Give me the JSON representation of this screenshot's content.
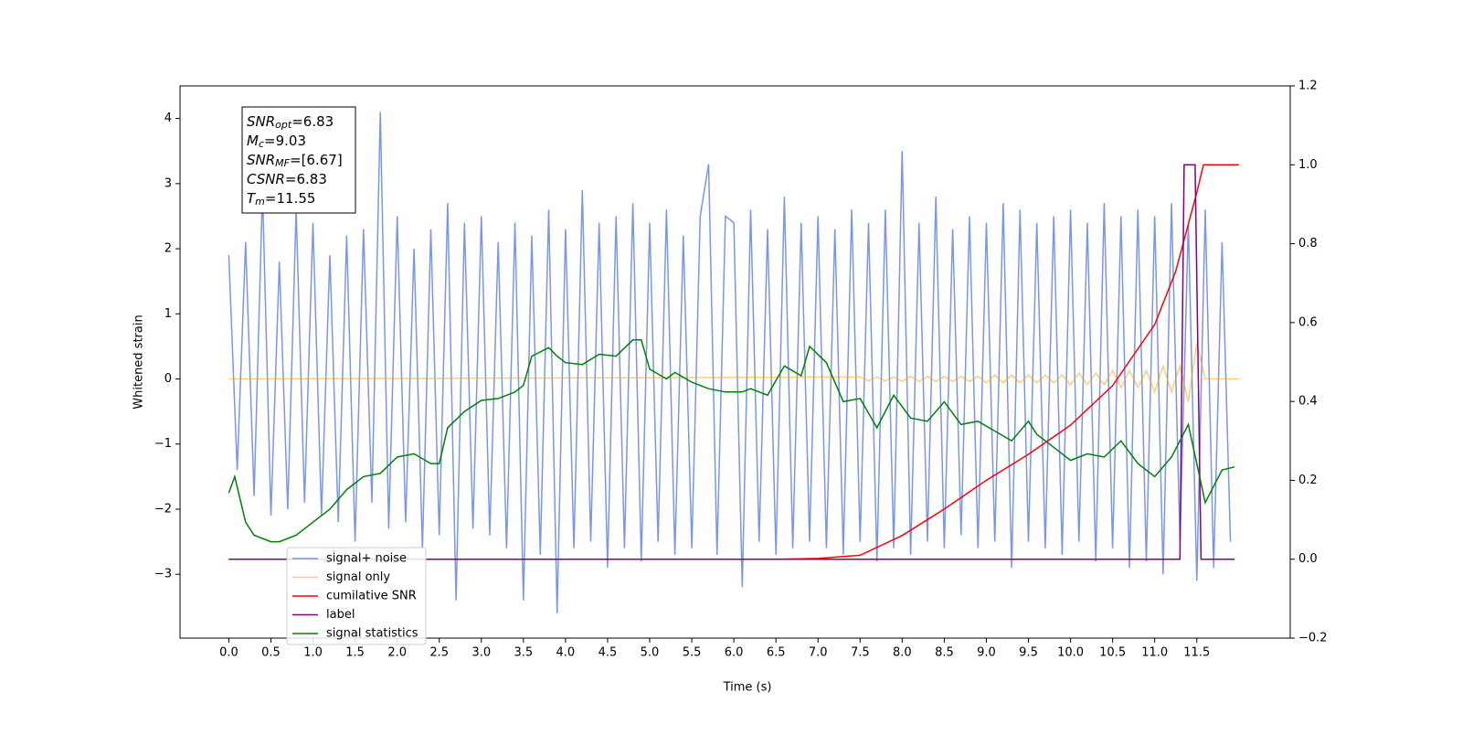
{
  "chart_data": {
    "type": "line",
    "xlabel": "Time (s)",
    "ylabel": "Whitened strain",
    "xlim": [
      -0.58,
      12.61
    ],
    "ylim": [
      -3.98,
      4.5
    ],
    "y2lim": [
      -0.2,
      1.2
    ],
    "xticks": [
      {
        "value": 0,
        "label": "0.0"
      },
      0.5,
      {
        "value": 1,
        "label": "1.0"
      },
      1.5,
      {
        "value": 2,
        "label": "2.0"
      },
      2.5,
      {
        "value": 3,
        "label": "3.0"
      },
      3.5,
      {
        "value": 4,
        "label": "4.0"
      },
      4.5,
      {
        "value": 5,
        "label": "5.0"
      },
      5.5,
      {
        "value": 6,
        "label": "6.0"
      },
      6.5,
      {
        "value": 7,
        "label": "7.0"
      },
      7.5,
      {
        "value": 8,
        "label": "8.0"
      },
      8.5,
      {
        "value": 9,
        "label": "9.0"
      },
      9.5,
      {
        "value": 10,
        "label": "10.0"
      },
      10.5,
      {
        "value": 11,
        "label": "11.0"
      },
      11.5
    ],
    "yticks": [
      {
        "value": -3,
        "label": "−3"
      },
      {
        "value": -2,
        "label": "−2"
      },
      {
        "value": -1,
        "label": "−1"
      },
      0,
      1,
      2,
      3,
      4
    ],
    "y2ticks": [
      {
        "value": -0.2,
        "label": "−0.2"
      },
      {
        "value": 0,
        "label": "0.0"
      },
      0.2,
      0.4,
      0.6,
      0.8,
      {
        "value": 1,
        "label": "1.0"
      },
      1.2
    ],
    "annotation": [
      {
        "name": "SNR",
        "sub": "opt",
        "text": "=6.83"
      },
      {
        "name": "M",
        "sub": "c",
        "text": "=9.03"
      },
      {
        "name": "SNR",
        "sub": "MF",
        "text": "=[6.67]"
      },
      {
        "name": "CSNR",
        "sub": null,
        "text": "=6.83"
      },
      {
        "name": "T",
        "sub": "m",
        "text": "=11.55"
      }
    ],
    "series": [
      {
        "name": "signal+ noise",
        "color": "#4169e1",
        "x": [
          0,
          0.1,
          0.2,
          0.3,
          0.4,
          0.5,
          0.6,
          0.7,
          0.8,
          0.9,
          1,
          1.1,
          1.2,
          1.3,
          1.4,
          1.5,
          1.6,
          1.7,
          1.8,
          1.9,
          2,
          2.1,
          2.2,
          2.3,
          2.4,
          2.5,
          2.6,
          2.7,
          2.8,
          2.9,
          3,
          3.1,
          3.2,
          3.3,
          3.4,
          3.5,
          3.6,
          3.7,
          3.8,
          3.9,
          4,
          4.1,
          4.2,
          4.3,
          4.4,
          4.5,
          4.6,
          4.7,
          4.8,
          4.9,
          5,
          5.1,
          5.2,
          5.3,
          5.4,
          5.5,
          5.6,
          5.7,
          5.8,
          5.9,
          6,
          6.1,
          6.2,
          6.3,
          6.4,
          6.5,
          6.6,
          6.7,
          6.8,
          6.9,
          7,
          7.1,
          7.2,
          7.3,
          7.4,
          7.5,
          7.6,
          7.7,
          7.8,
          7.9,
          8,
          8.1,
          8.2,
          8.3,
          8.4,
          8.5,
          8.6,
          8.7,
          8.8,
          8.9,
          9,
          9.1,
          9.2,
          9.3,
          9.4,
          9.5,
          9.6,
          9.7,
          9.8,
          9.9,
          10,
          10.1,
          10.2,
          10.3,
          10.4,
          10.5,
          10.6,
          10.7,
          10.8,
          10.9,
          11,
          11.1,
          11.2,
          11.3,
          11.4,
          11.5,
          11.6,
          11.7,
          11.8,
          11.9
        ],
        "values": [
          1.9,
          -1.4,
          2.1,
          -1.8,
          2.9,
          -2.1,
          1.8,
          -2.0,
          2.6,
          -1.9,
          2.4,
          -2.1,
          1.9,
          -2.2,
          2.2,
          -2.5,
          2.3,
          -1.9,
          4.1,
          -2.3,
          2.5,
          -2.2,
          2.0,
          -2.6,
          2.3,
          -2.4,
          2.7,
          -3.4,
          2.4,
          -2.3,
          2.5,
          -2.4,
          2.1,
          -2.6,
          2.4,
          -3.4,
          2.2,
          -2.7,
          2.6,
          -3.6,
          2.3,
          -2.6,
          2.9,
          -2.5,
          2.4,
          -2.9,
          2.5,
          -2.6,
          2.7,
          -2.8,
          2.4,
          -2.5,
          2.6,
          -2.7,
          2.2,
          -2.6,
          2.5,
          3.3,
          -2.7,
          2.5,
          2.4,
          -3.2,
          2.6,
          -2.5,
          2.3,
          -2.7,
          2.8,
          -2.6,
          2.4,
          -2.5,
          2.5,
          -2.6,
          2.3,
          -2.7,
          2.6,
          -2.5,
          2.4,
          -2.8,
          2.6,
          -2.6,
          3.5,
          -2.7,
          2.4,
          -2.5,
          2.8,
          -2.6,
          2.3,
          -2.4,
          2.5,
          -2.6,
          2.4,
          -2.5,
          2.7,
          -2.9,
          2.6,
          -2.5,
          2.4,
          -2.6,
          2.5,
          -2.7,
          2.6,
          -2.5,
          2.4,
          -2.8,
          2.7,
          -2.6,
          2.5,
          -2.9,
          2.6,
          -2.8,
          2.5,
          -3.0,
          2.7,
          -2.5,
          2.4,
          -3.1,
          2.6,
          -2.9,
          2.1,
          -2.5
        ]
      },
      {
        "name": "signal only",
        "color": "#ffa500",
        "x": [
          0,
          7.5,
          7.6,
          7.7,
          7.8,
          7.9,
          8,
          8.1,
          8.2,
          8.3,
          8.4,
          8.5,
          8.6,
          8.7,
          8.8,
          8.9,
          9,
          9.1,
          9.2,
          9.3,
          9.4,
          9.5,
          9.6,
          9.7,
          9.8,
          9.9,
          10,
          10.1,
          10.2,
          10.3,
          10.4,
          10.5,
          10.6,
          10.7,
          10.8,
          10.9,
          11,
          11.1,
          11.2,
          11.3,
          11.4,
          11.5,
          11.6,
          12
        ],
        "values": [
          0,
          0.03,
          -0.03,
          0.03,
          -0.03,
          0.03,
          -0.04,
          0.04,
          -0.04,
          0.04,
          -0.04,
          0.04,
          -0.04,
          0.04,
          -0.04,
          0.04,
          -0.06,
          0.06,
          -0.06,
          0.06,
          -0.06,
          0.06,
          -0.06,
          0.06,
          -0.06,
          0.06,
          -0.09,
          0.09,
          -0.09,
          0.09,
          -0.09,
          0.13,
          -0.13,
          0.13,
          -0.13,
          0.13,
          -0.2,
          0.2,
          -0.2,
          0.2,
          -0.35,
          0.55,
          0,
          0
        ]
      },
      {
        "name": "cumilative SNR",
        "color": "#ff0000",
        "axis": "y2",
        "x": [
          0,
          6.5,
          7,
          7.5,
          8,
          8.5,
          9,
          9.5,
          10,
          10.5,
          11,
          11.25,
          11.5,
          11.58,
          12
        ],
        "values": [
          0,
          0,
          0.002,
          0.01,
          0.06,
          0.127,
          0.2,
          0.266,
          0.34,
          0.44,
          0.595,
          0.73,
          0.93,
          1,
          1
        ]
      },
      {
        "name": "label",
        "color": "#800080",
        "axis": "y2",
        "x": [
          0,
          11.3,
          11.35,
          11.48,
          11.55,
          11.95
        ],
        "values": [
          0,
          0,
          1,
          1,
          0,
          0
        ]
      },
      {
        "name": "signal statistics",
        "color": "#008000",
        "x": [
          0,
          0.07,
          0.2,
          0.3,
          0.5,
          0.6,
          0.8,
          1,
          1.2,
          1.4,
          1.6,
          1.8,
          2,
          2.2,
          2.4,
          2.5,
          2.6,
          2.8,
          3,
          3.2,
          3.4,
          3.5,
          3.6,
          3.8,
          3.9,
          4,
          4.2,
          4.4,
          4.6,
          4.8,
          4.9,
          5,
          5.2,
          5.3,
          5.5,
          5.7,
          5.9,
          6.1,
          6.2,
          6.4,
          6.6,
          6.8,
          6.9,
          7.1,
          7.3,
          7.5,
          7.7,
          7.9,
          8.1,
          8.3,
          8.5,
          8.7,
          8.9,
          9.1,
          9.3,
          9.5,
          9.6,
          9.8,
          10,
          10.2,
          10.4,
          10.6,
          10.8,
          11,
          11.2,
          11.4,
          11.6,
          11.8,
          11.95
        ],
        "values": [
          -1.75,
          -1.5,
          -2.2,
          -2.4,
          -2.5,
          -2.5,
          -2.4,
          -2.2,
          -2.0,
          -1.7,
          -1.5,
          -1.45,
          -1.2,
          -1.15,
          -1.3,
          -1.3,
          -0.75,
          -0.5,
          -0.33,
          -0.3,
          -0.2,
          -0.1,
          0.35,
          0.48,
          0.35,
          0.25,
          0.22,
          0.38,
          0.35,
          0.6,
          0.6,
          0.15,
          0.0,
          0.1,
          -0.05,
          -0.15,
          -0.2,
          -0.2,
          -0.15,
          -0.25,
          0.2,
          0.05,
          0.5,
          0.25,
          -0.35,
          -0.3,
          -0.75,
          -0.25,
          -0.6,
          -0.65,
          -0.35,
          -0.7,
          -0.65,
          -0.8,
          -0.95,
          -0.65,
          -0.85,
          -1.05,
          -1.25,
          -1.15,
          -1.2,
          -0.95,
          -1.3,
          -1.5,
          -1.2,
          -0.7,
          -1.9,
          -1.4,
          -1.35
        ]
      }
    ]
  }
}
